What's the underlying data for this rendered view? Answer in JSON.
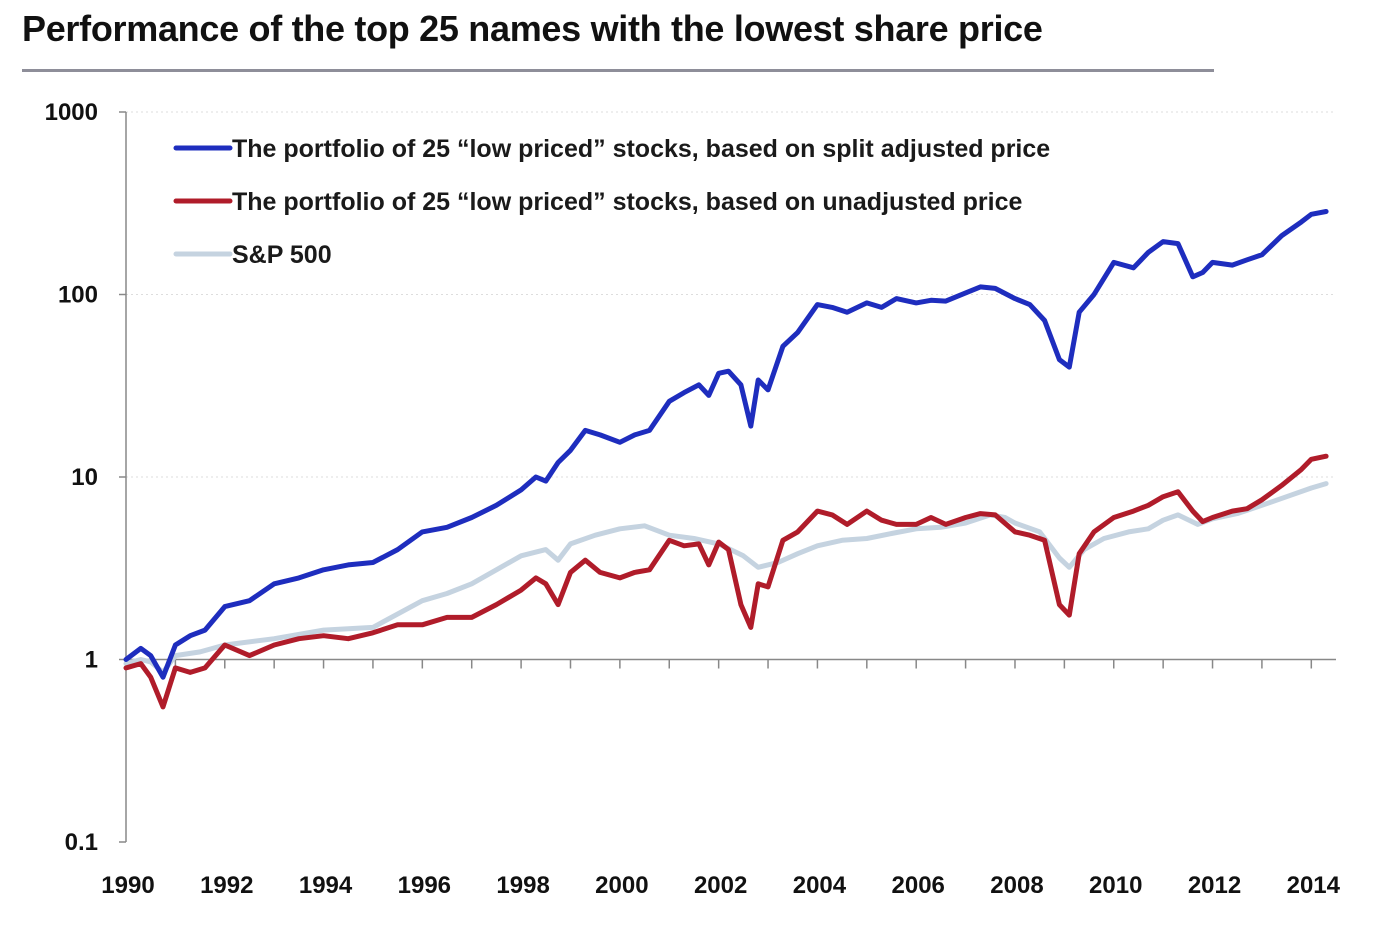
{
  "title": "Performance of the top 25 names with the lowest share price",
  "colors": {
    "adjusted": "#1e2dbe",
    "unadjusted": "#b01c2a",
    "sp500": "#c5d3e0",
    "axis": "#888888",
    "grid": "#dddddd"
  },
  "chart_data": {
    "type": "line",
    "title": "Performance of the top 25 names with the lowest share price",
    "xlabel": "",
    "ylabel": "",
    "yscale": "log",
    "xlim": [
      1990,
      2014.5
    ],
    "ylim": [
      0.1,
      1000
    ],
    "yticks": [
      1000,
      100,
      10,
      1,
      0.1
    ],
    "ytick_labels": [
      "1000",
      "100",
      "10",
      "1",
      "0.1"
    ],
    "xticks": [
      1990,
      1992,
      1994,
      1996,
      1998,
      2000,
      2002,
      2004,
      2006,
      2008,
      2010,
      2012,
      2014
    ],
    "xtick_labels": [
      "1990",
      "1992",
      "1994",
      "1996",
      "1998",
      "2000",
      "2002",
      "2004",
      "2006",
      "2008",
      "2010",
      "2012",
      "2014"
    ],
    "grid": "horizontal dotted",
    "legend_position": "top-left",
    "series": [
      {
        "name": "The portfolio of 25 “low priced” stocks, based on split adjusted price",
        "color": "#1e2dbe",
        "x": [
          1990,
          1990.3,
          1990.5,
          1990.75,
          1991,
          1991.3,
          1991.6,
          1992,
          1992.5,
          1993,
          1993.5,
          1994,
          1994.5,
          1995,
          1995.5,
          1996,
          1996.5,
          1997,
          1997.5,
          1998,
          1998.3,
          1998.5,
          1998.75,
          1999,
          1999.3,
          1999.6,
          2000,
          2000.3,
          2000.6,
          2001,
          2001.3,
          2001.6,
          2001.8,
          2002,
          2002.2,
          2002.45,
          2002.65,
          2002.8,
          2003,
          2003.3,
          2003.6,
          2004,
          2004.3,
          2004.6,
          2005,
          2005.3,
          2005.6,
          2006,
          2006.3,
          2006.6,
          2007,
          2007.3,
          2007.6,
          2008,
          2008.3,
          2008.6,
          2008.9,
          2009.1,
          2009.3,
          2009.6,
          2010,
          2010.4,
          2010.7,
          2011,
          2011.3,
          2011.6,
          2011.8,
          2012,
          2012.4,
          2012.7,
          2013,
          2013.4,
          2013.8,
          2014,
          2014.3
        ],
        "values": [
          1.0,
          1.15,
          1.05,
          0.8,
          1.2,
          1.35,
          1.45,
          1.95,
          2.1,
          2.6,
          2.8,
          3.1,
          3.3,
          3.4,
          4.0,
          5.0,
          5.3,
          6.0,
          7.0,
          8.5,
          10,
          9.5,
          12,
          14,
          18,
          17,
          15.5,
          17,
          18,
          26,
          29,
          32,
          28,
          37,
          38,
          32,
          19,
          34,
          30,
          52,
          62,
          88,
          85,
          80,
          90,
          85,
          95,
          90,
          93,
          92,
          102,
          110,
          108,
          95,
          88,
          72,
          44,
          40,
          80,
          100,
          150,
          140,
          170,
          195,
          190,
          125,
          132,
          150,
          145,
          155,
          165,
          210,
          250,
          275,
          285
        ]
      },
      {
        "name": "The portfolio of 25 “low priced” stocks, based on unadjusted price",
        "color": "#b01c2a",
        "x": [
          1990,
          1990.3,
          1990.5,
          1990.75,
          1991,
          1991.3,
          1991.6,
          1992,
          1992.5,
          1993,
          1993.5,
          1994,
          1994.5,
          1995,
          1995.5,
          1996,
          1996.5,
          1997,
          1997.5,
          1998,
          1998.3,
          1998.5,
          1998.75,
          1999,
          1999.3,
          1999.6,
          2000,
          2000.3,
          2000.6,
          2001,
          2001.3,
          2001.6,
          2001.8,
          2002,
          2002.2,
          2002.45,
          2002.65,
          2002.8,
          2003,
          2003.3,
          2003.6,
          2004,
          2004.3,
          2004.6,
          2005,
          2005.3,
          2005.6,
          2006,
          2006.3,
          2006.6,
          2007,
          2007.3,
          2007.6,
          2008,
          2008.3,
          2008.6,
          2008.9,
          2009.1,
          2009.3,
          2009.6,
          2010,
          2010.4,
          2010.7,
          2011,
          2011.3,
          2011.6,
          2011.8,
          2012,
          2012.4,
          2012.7,
          2013,
          2013.4,
          2013.8,
          2014,
          2014.3
        ],
        "values": [
          0.9,
          0.95,
          0.8,
          0.55,
          0.9,
          0.85,
          0.9,
          1.2,
          1.05,
          1.2,
          1.3,
          1.35,
          1.3,
          1.4,
          1.55,
          1.55,
          1.7,
          1.7,
          2.0,
          2.4,
          2.8,
          2.6,
          2.0,
          3.0,
          3.5,
          3.0,
          2.8,
          3.0,
          3.1,
          4.5,
          4.2,
          4.3,
          3.3,
          4.4,
          4.0,
          2.0,
          1.5,
          2.6,
          2.5,
          4.5,
          5.0,
          6.5,
          6.2,
          5.5,
          6.5,
          5.8,
          5.5,
          5.5,
          6.0,
          5.5,
          6.0,
          6.3,
          6.2,
          5.0,
          4.8,
          4.5,
          2.0,
          1.75,
          3.8,
          5.0,
          6.0,
          6.5,
          7.0,
          7.8,
          8.3,
          6.5,
          5.7,
          6.0,
          6.5,
          6.7,
          7.5,
          9.0,
          11.0,
          12.5,
          13.0
        ]
      },
      {
        "name": "S&P 500",
        "color": "#c5d3e0",
        "x": [
          1990,
          1990.3,
          1990.5,
          1990.75,
          1991,
          1991.5,
          1992,
          1993,
          1994,
          1995,
          1996,
          1996.5,
          1997,
          1997.5,
          1998,
          1998.5,
          1998.75,
          1999,
          1999.5,
          2000,
          2000.5,
          2001,
          2001.5,
          2002,
          2002.5,
          2002.8,
          2003.2,
          2003.6,
          2004,
          2004.5,
          2005,
          2005.5,
          2006,
          2006.5,
          2007,
          2007.5,
          2007.8,
          2008,
          2008.5,
          2008.9,
          2009.1,
          2009.4,
          2009.8,
          2010.3,
          2010.7,
          2011,
          2011.3,
          2011.7,
          2012,
          2012.5,
          2013,
          2013.5,
          2014,
          2014.3
        ],
        "values": [
          0.95,
          1.0,
          0.97,
          0.85,
          1.05,
          1.1,
          1.2,
          1.3,
          1.45,
          1.5,
          2.1,
          2.3,
          2.6,
          3.1,
          3.7,
          4.0,
          3.5,
          4.3,
          4.8,
          5.2,
          5.4,
          4.8,
          4.6,
          4.3,
          3.7,
          3.2,
          3.4,
          3.8,
          4.2,
          4.5,
          4.6,
          4.9,
          5.2,
          5.3,
          5.6,
          6.2,
          6.0,
          5.6,
          5.0,
          3.6,
          3.2,
          4.0,
          4.6,
          5.0,
          5.2,
          5.8,
          6.2,
          5.5,
          5.9,
          6.3,
          7.0,
          7.8,
          8.7,
          9.2
        ]
      }
    ]
  }
}
